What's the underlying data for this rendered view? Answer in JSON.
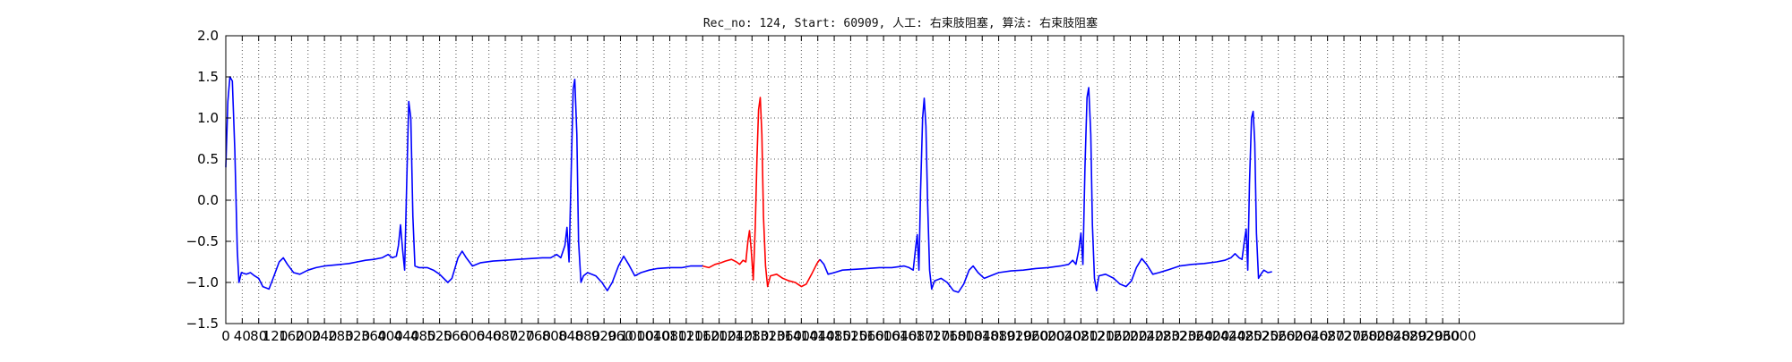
{
  "chart_data": {
    "type": "line",
    "title": "Rec_no: 124, Start: 60909, 人工: 右束肢阻塞, 算法: 右束肢阻塞",
    "xlabel": "",
    "ylabel": "",
    "xlim": [
      0,
      3400
    ],
    "ylim": [
      -1.5,
      2.0
    ],
    "yticks": [
      -1.5,
      -1.0,
      -0.5,
      0.0,
      0.5,
      1.0,
      1.5,
      2.0
    ],
    "ytick_labels": [
      "−1.5",
      "−1.0",
      "−0.5",
      "0.0",
      "0.5",
      "1.0",
      "1.5",
      "2.0"
    ],
    "xticks": [
      0,
      40,
      80,
      120,
      160,
      200,
      240,
      280,
      320,
      360,
      400,
      440,
      480,
      520,
      560,
      600,
      640,
      680,
      720,
      760,
      800,
      840,
      880,
      920,
      960,
      1000,
      1040,
      1080,
      1120,
      1160,
      1200,
      1240,
      1280,
      1320,
      1360,
      1400,
      1440,
      1480,
      1520,
      1560,
      1600,
      1640,
      1680,
      1720,
      1760,
      1800,
      1840,
      1880,
      1920,
      1960,
      2000,
      2040,
      2080,
      2120,
      2160,
      2200,
      2240,
      2280,
      2320,
      2360,
      2400,
      2440,
      2480,
      2520,
      2560,
      2600,
      2640,
      2680,
      2720,
      2760,
      2800,
      2840,
      2880,
      2920,
      2960,
      3000
    ],
    "xtick_labels": [
      "0",
      "40",
      "80",
      "120",
      "160",
      "200",
      "240",
      "280",
      "320",
      "360",
      "400",
      "440",
      "480",
      "520",
      "560",
      "600",
      "640",
      "680",
      "720",
      "760",
      "800",
      "840",
      "880",
      "920",
      "960",
      "1000",
      "1040",
      "1080",
      "1120",
      "1160",
      "1200",
      "1240",
      "1280",
      "1320",
      "1360",
      "1400",
      "1440",
      "1480",
      "1520",
      "1560",
      "1600",
      "1640",
      "1680",
      "1720",
      "1760",
      "1800",
      "1840",
      "1880",
      "1920",
      "1960",
      "2000",
      "2040",
      "2080",
      "2120",
      "2160",
      "2200",
      "2240",
      "2280",
      "2320",
      "2360",
      "2400",
      "2440",
      "2480",
      "2520",
      "2560",
      "2600",
      "2640",
      "2680",
      "2720",
      "2760",
      "2800",
      "2840",
      "2880",
      "2920",
      "2960",
      "3000"
    ],
    "grid": true,
    "grid_style": "dotted",
    "legend": "none",
    "series": [
      {
        "color": "#0000ff",
        "segment": "before-highlight",
        "points": [
          [
            0,
            0.4
          ],
          [
            5,
            1.2
          ],
          [
            10,
            1.5
          ],
          [
            16,
            1.45
          ],
          [
            22,
            0.6
          ],
          [
            28,
            -0.6
          ],
          [
            32,
            -1.0
          ],
          [
            38,
            -0.88
          ],
          [
            50,
            -0.9
          ],
          [
            60,
            -0.88
          ],
          [
            70,
            -0.92
          ],
          [
            80,
            -0.95
          ],
          [
            90,
            -1.05
          ],
          [
            105,
            -1.08
          ],
          [
            115,
            -0.95
          ],
          [
            130,
            -0.75
          ],
          [
            140,
            -0.7
          ],
          [
            150,
            -0.78
          ],
          [
            165,
            -0.88
          ],
          [
            180,
            -0.9
          ],
          [
            200,
            -0.85
          ],
          [
            220,
            -0.82
          ],
          [
            240,
            -0.8
          ],
          [
            260,
            -0.79
          ],
          [
            280,
            -0.78
          ],
          [
            300,
            -0.77
          ],
          [
            320,
            -0.75
          ],
          [
            340,
            -0.73
          ],
          [
            360,
            -0.72
          ],
          [
            380,
            -0.7
          ],
          [
            395,
            -0.66
          ],
          [
            405,
            -0.7
          ],
          [
            415,
            -0.68
          ],
          [
            420,
            -0.55
          ],
          [
            425,
            -0.3
          ],
          [
            430,
            -0.6
          ],
          [
            435,
            -0.85
          ],
          [
            440,
            0.2
          ],
          [
            445,
            1.2
          ],
          [
            450,
            1.0
          ],
          [
            455,
            -0.2
          ],
          [
            460,
            -0.8
          ],
          [
            470,
            -0.82
          ],
          [
            490,
            -0.82
          ],
          [
            505,
            -0.85
          ],
          [
            520,
            -0.9
          ],
          [
            540,
            -1.0
          ],
          [
            550,
            -0.95
          ],
          [
            565,
            -0.7
          ],
          [
            575,
            -0.62
          ],
          [
            585,
            -0.7
          ],
          [
            600,
            -0.8
          ],
          [
            620,
            -0.76
          ],
          [
            650,
            -0.74
          ],
          [
            680,
            -0.73
          ],
          [
            710,
            -0.72
          ],
          [
            740,
            -0.71
          ],
          [
            770,
            -0.7
          ],
          [
            790,
            -0.7
          ],
          [
            805,
            -0.66
          ],
          [
            815,
            -0.7
          ],
          [
            825,
            -0.55
          ],
          [
            830,
            -0.33
          ],
          [
            835,
            -0.75
          ],
          [
            840,
            0.3
          ],
          [
            845,
            1.35
          ],
          [
            849,
            1.47
          ],
          [
            854,
            0.8
          ],
          [
            858,
            -0.5
          ],
          [
            864,
            -1.0
          ],
          [
            870,
            -0.92
          ],
          [
            880,
            -0.88
          ],
          [
            900,
            -0.92
          ],
          [
            915,
            -1.0
          ],
          [
            928,
            -1.1
          ],
          [
            940,
            -1.0
          ],
          [
            955,
            -0.8
          ],
          [
            968,
            -0.68
          ],
          [
            980,
            -0.78
          ],
          [
            995,
            -0.92
          ],
          [
            1010,
            -0.88
          ],
          [
            1030,
            -0.85
          ],
          [
            1050,
            -0.83
          ],
          [
            1080,
            -0.82
          ],
          [
            1110,
            -0.82
          ],
          [
            1130,
            -0.8
          ],
          [
            1150,
            -0.8
          ],
          [
            1160,
            -0.8
          ]
        ]
      },
      {
        "color": "#ff0000",
        "segment": "highlight",
        "points": [
          [
            1160,
            -0.8
          ],
          [
            1175,
            -0.82
          ],
          [
            1190,
            -0.78
          ],
          [
            1205,
            -0.76
          ],
          [
            1215,
            -0.74
          ],
          [
            1230,
            -0.72
          ],
          [
            1242,
            -0.75
          ],
          [
            1250,
            -0.78
          ],
          [
            1258,
            -0.73
          ],
          [
            1265,
            -0.75
          ],
          [
            1270,
            -0.5
          ],
          [
            1274,
            -0.37
          ],
          [
            1278,
            -0.6
          ],
          [
            1283,
            -0.97
          ],
          [
            1288,
            -0.3
          ],
          [
            1292,
            0.5
          ],
          [
            1296,
            1.1
          ],
          [
            1300,
            1.25
          ],
          [
            1304,
            0.8
          ],
          [
            1308,
            -0.2
          ],
          [
            1313,
            -0.8
          ],
          [
            1318,
            -1.05
          ],
          [
            1325,
            -0.92
          ],
          [
            1340,
            -0.9
          ],
          [
            1355,
            -0.95
          ],
          [
            1370,
            -0.98
          ],
          [
            1385,
            -1.0
          ],
          [
            1400,
            -1.05
          ],
          [
            1412,
            -1.02
          ],
          [
            1425,
            -0.9
          ],
          [
            1438,
            -0.77
          ],
          [
            1445,
            -0.72
          ]
        ]
      },
      {
        "color": "#0000ff",
        "segment": "after-highlight",
        "points": [
          [
            1445,
            -0.72
          ],
          [
            1455,
            -0.78
          ],
          [
            1465,
            -0.9
          ],
          [
            1480,
            -0.88
          ],
          [
            1500,
            -0.85
          ],
          [
            1530,
            -0.84
          ],
          [
            1560,
            -0.83
          ],
          [
            1590,
            -0.82
          ],
          [
            1620,
            -0.82
          ],
          [
            1650,
            -0.8
          ],
          [
            1662,
            -0.82
          ],
          [
            1672,
            -0.85
          ],
          [
            1678,
            -0.58
          ],
          [
            1682,
            -0.42
          ],
          [
            1686,
            -0.85
          ],
          [
            1690,
            0.1
          ],
          [
            1695,
            1.0
          ],
          [
            1699,
            1.24
          ],
          [
            1703,
            0.9
          ],
          [
            1707,
            0.0
          ],
          [
            1712,
            -0.85
          ],
          [
            1717,
            -1.08
          ],
          [
            1724,
            -0.98
          ],
          [
            1740,
            -0.95
          ],
          [
            1755,
            -1.0
          ],
          [
            1770,
            -1.1
          ],
          [
            1782,
            -1.12
          ],
          [
            1795,
            -1.02
          ],
          [
            1808,
            -0.85
          ],
          [
            1818,
            -0.8
          ],
          [
            1830,
            -0.88
          ],
          [
            1845,
            -0.95
          ],
          [
            1860,
            -0.92
          ],
          [
            1880,
            -0.88
          ],
          [
            1910,
            -0.86
          ],
          [
            1940,
            -0.85
          ],
          [
            1970,
            -0.83
          ],
          [
            2000,
            -0.82
          ],
          [
            2030,
            -0.8
          ],
          [
            2050,
            -0.78
          ],
          [
            2060,
            -0.73
          ],
          [
            2068,
            -0.78
          ],
          [
            2075,
            -0.6
          ],
          [
            2080,
            -0.4
          ],
          [
            2085,
            -0.78
          ],
          [
            2090,
            0.4
          ],
          [
            2095,
            1.25
          ],
          [
            2099,
            1.37
          ],
          [
            2104,
            0.8
          ],
          [
            2108,
            -0.3
          ],
          [
            2113,
            -0.95
          ],
          [
            2118,
            -1.1
          ],
          [
            2124,
            -0.92
          ],
          [
            2140,
            -0.9
          ],
          [
            2160,
            -0.95
          ],
          [
            2175,
            -1.02
          ],
          [
            2190,
            -1.05
          ],
          [
            2203,
            -0.98
          ],
          [
            2215,
            -0.82
          ],
          [
            2228,
            -0.71
          ],
          [
            2240,
            -0.78
          ],
          [
            2255,
            -0.9
          ],
          [
            2270,
            -0.88
          ],
          [
            2290,
            -0.85
          ],
          [
            2320,
            -0.8
          ],
          [
            2350,
            -0.78
          ],
          [
            2380,
            -0.77
          ],
          [
            2410,
            -0.75
          ],
          [
            2430,
            -0.73
          ],
          [
            2445,
            -0.7
          ],
          [
            2455,
            -0.65
          ],
          [
            2465,
            -0.7
          ],
          [
            2472,
            -0.72
          ],
          [
            2478,
            -0.48
          ],
          [
            2482,
            -0.35
          ],
          [
            2486,
            -0.85
          ],
          [
            2490,
            0.2
          ],
          [
            2495,
            1.0
          ],
          [
            2499,
            1.08
          ],
          [
            2503,
            0.7
          ],
          [
            2507,
            -0.4
          ],
          [
            2512,
            -0.95
          ],
          [
            2518,
            -0.9
          ],
          [
            2525,
            -0.85
          ],
          [
            2535,
            -0.88
          ],
          [
            2545,
            -0.87
          ]
        ]
      }
    ]
  }
}
